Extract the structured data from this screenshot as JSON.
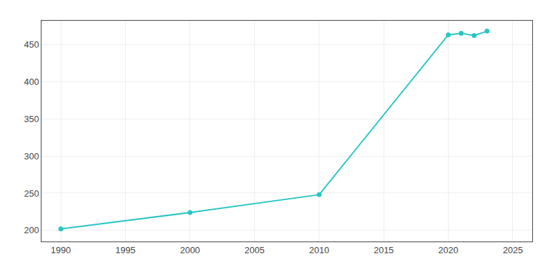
{
  "chart_data": {
    "type": "line",
    "x": [
      1990,
      2000,
      2010,
      2020,
      2021,
      2022,
      2023
    ],
    "values": [
      202,
      224,
      248,
      463,
      465,
      462,
      468
    ],
    "color": "#28C5C5",
    "marker": "circle",
    "xlim": [
      1988.5,
      2026.5
    ],
    "ylim": [
      185,
      482
    ],
    "xticks": [
      1990,
      1995,
      2000,
      2005,
      2010,
      2015,
      2020,
      2025
    ],
    "yticks": [
      200,
      250,
      300,
      350,
      400,
      450
    ],
    "grid": true
  }
}
